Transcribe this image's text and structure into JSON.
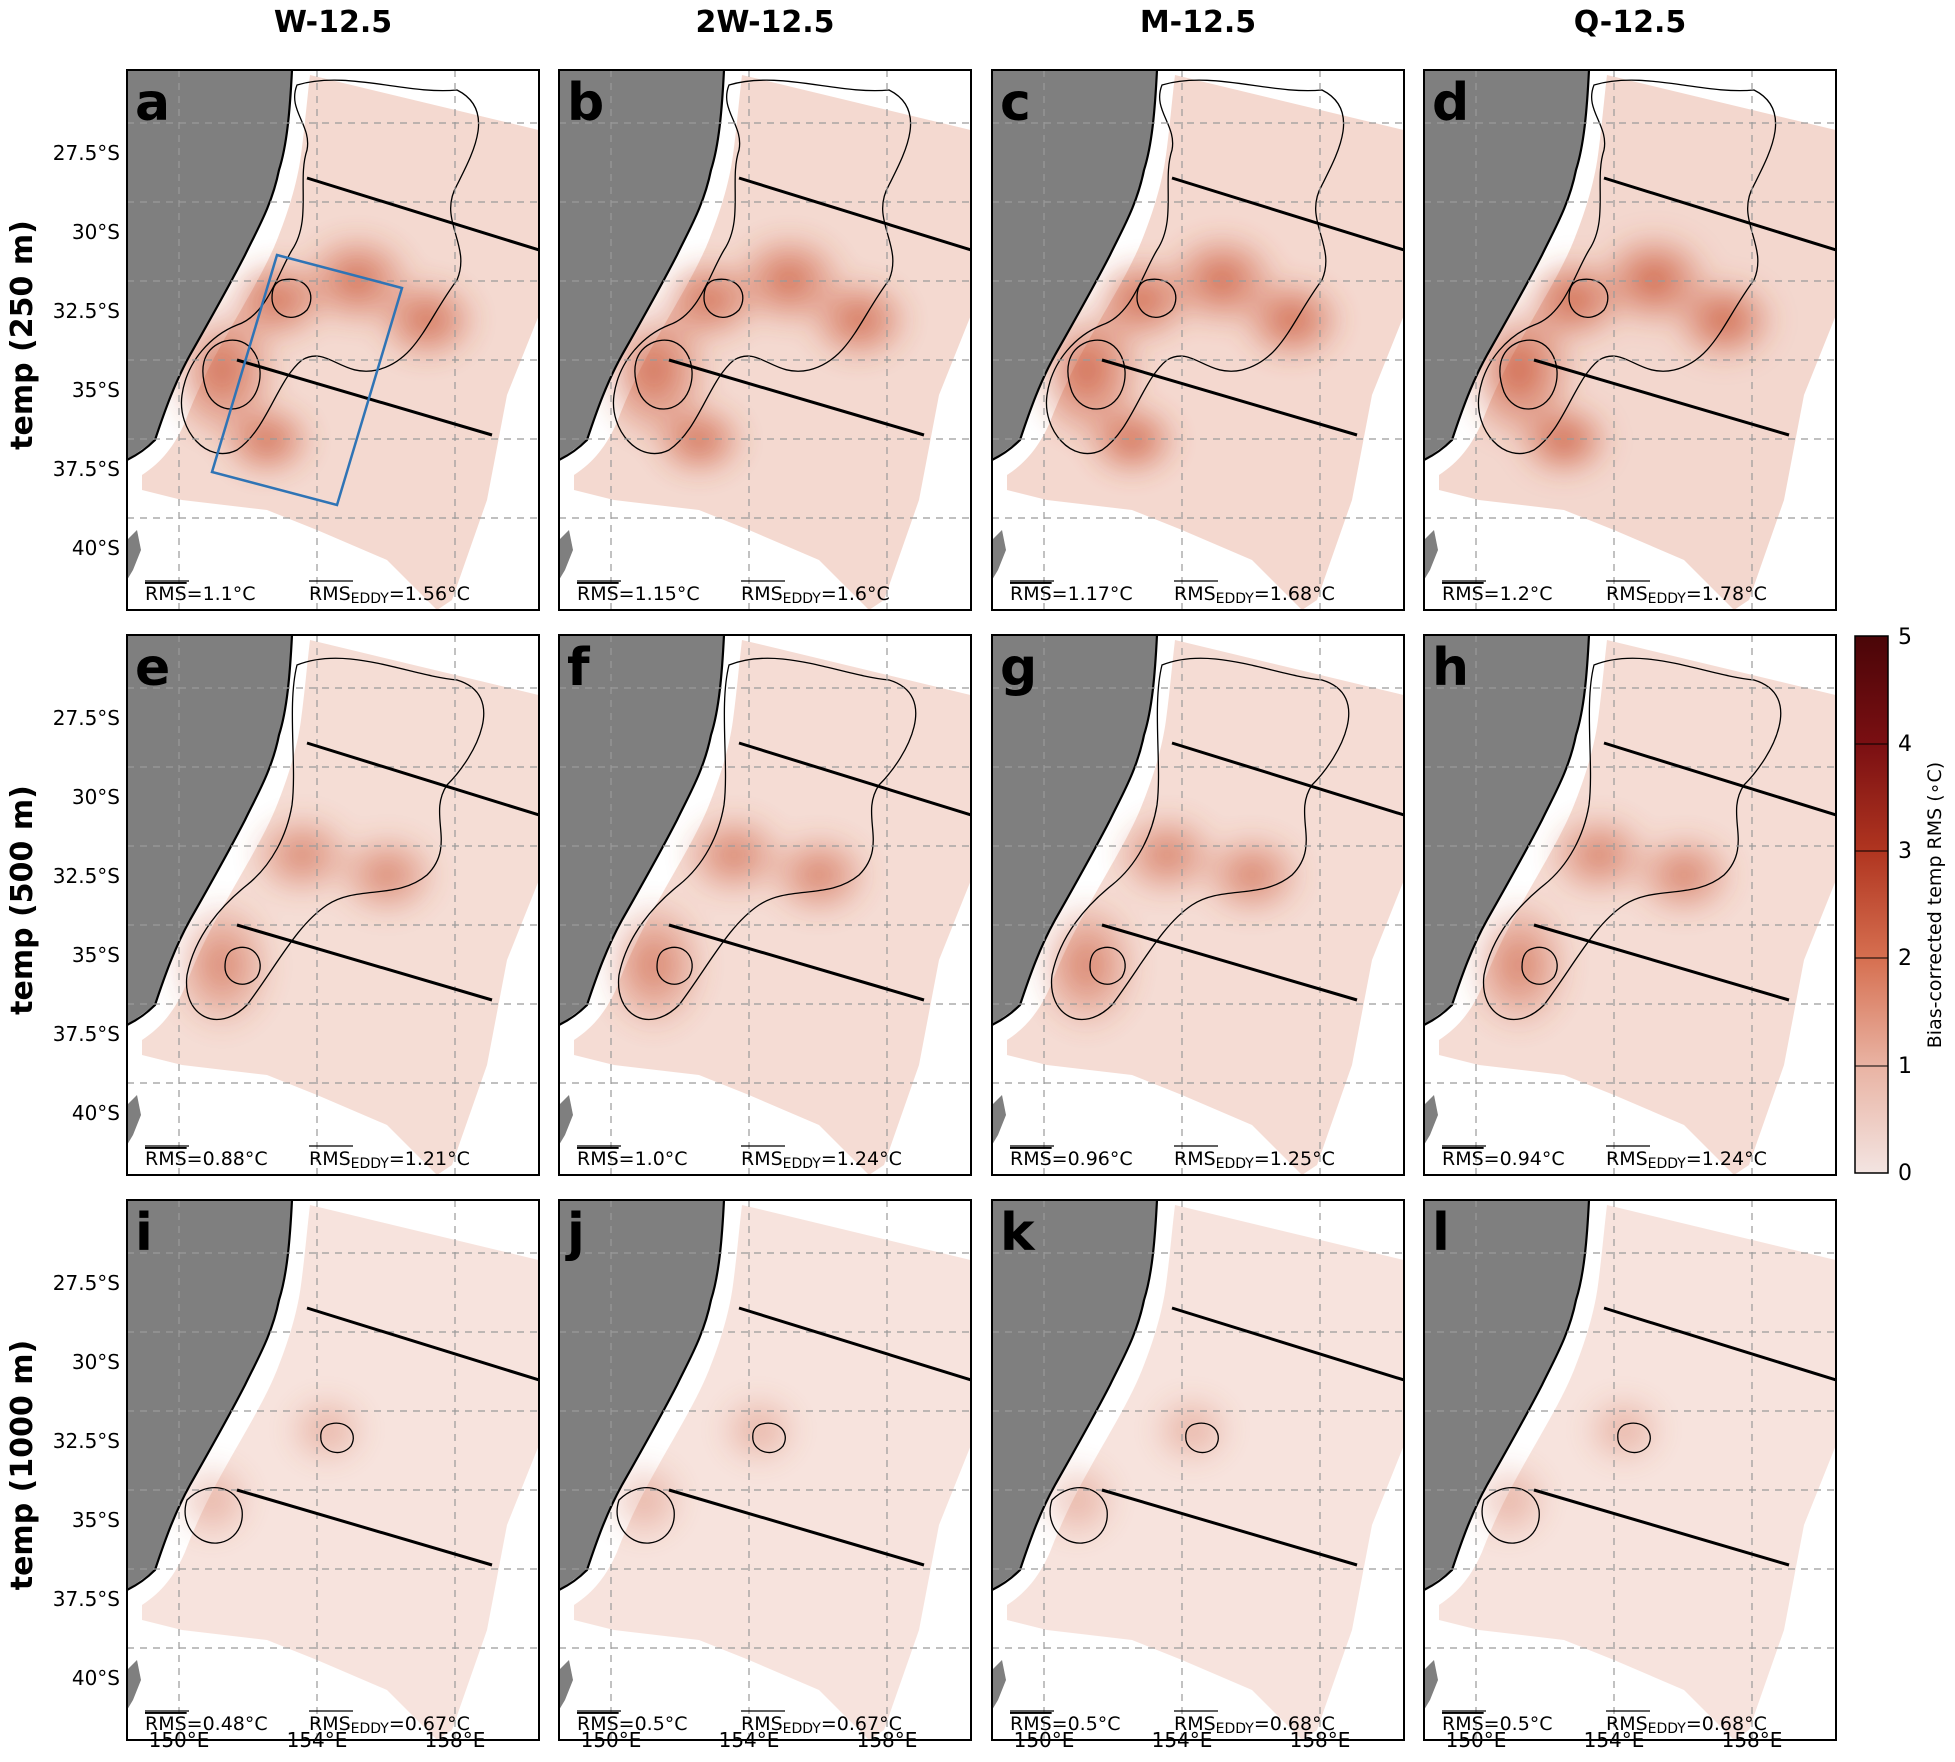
{
  "columns": [
    "W-12.5",
    "2W-12.5",
    "M-12.5",
    "Q-12.5"
  ],
  "rows": [
    "temp (250 m)",
    "temp (500 m)",
    "temp (1000 m)"
  ],
  "lat_ticks": [
    "27.5°S",
    "30°S",
    "32.5°S",
    "35°S",
    "37.5°S",
    "40°S"
  ],
  "lon_ticks": [
    "150°E",
    "154°E",
    "158°E"
  ],
  "panels": [
    {
      "letter": "a",
      "rms_label": "RMS",
      "rms_value": "=1.1°C",
      "eddy_label": "RMS",
      "eddy_sub": "EDDY",
      "eddy_value": "=1.56°C",
      "intensity": 1.15
    },
    {
      "letter": "b",
      "rms_label": "RMS",
      "rms_value": "=1.15°C",
      "eddy_label": "RMS",
      "eddy_sub": "EDDY",
      "eddy_value": "=1.6°C",
      "intensity": 1.15
    },
    {
      "letter": "c",
      "rms_label": "RMS",
      "rms_value": "=1.17°C",
      "eddy_label": "RMS",
      "eddy_sub": "EDDY",
      "eddy_value": "=1.68°C",
      "intensity": 1.2
    },
    {
      "letter": "d",
      "rms_label": "RMS",
      "rms_value": "=1.2°C",
      "eddy_label": "RMS",
      "eddy_sub": "EDDY",
      "eddy_value": "=1.78°C",
      "intensity": 1.25
    },
    {
      "letter": "e",
      "rms_label": "RMS",
      "rms_value": "=0.88°C",
      "eddy_label": "RMS",
      "eddy_sub": "EDDY",
      "eddy_value": "=1.21°C",
      "intensity": 0.9
    },
    {
      "letter": "f",
      "rms_label": "RMS",
      "rms_value": "=1.0°C",
      "eddy_label": "RMS",
      "eddy_sub": "EDDY",
      "eddy_value": "=1.24°C",
      "intensity": 0.95
    },
    {
      "letter": "g",
      "rms_label": "RMS",
      "rms_value": "=0.96°C",
      "eddy_label": "RMS",
      "eddy_sub": "EDDY",
      "eddy_value": "=1.25°C",
      "intensity": 0.95
    },
    {
      "letter": "h",
      "rms_label": "RMS",
      "rms_value": "=0.94°C",
      "eddy_label": "RMS",
      "eddy_sub": "EDDY",
      "eddy_value": "=1.24°C",
      "intensity": 0.95
    },
    {
      "letter": "i",
      "rms_label": "RMS",
      "rms_value": "=0.48°C",
      "eddy_label": "RMS",
      "eddy_sub": "EDDY",
      "eddy_value": "=0.67°C",
      "intensity": 0.5
    },
    {
      "letter": "j",
      "rms_label": "RMS",
      "rms_value": "=0.5°C",
      "eddy_label": "RMS",
      "eddy_sub": "EDDY",
      "eddy_value": "=0.67°C",
      "intensity": 0.5
    },
    {
      "letter": "k",
      "rms_label": "RMS",
      "rms_value": "=0.5°C",
      "eddy_label": "RMS",
      "eddy_sub": "EDDY",
      "eddy_value": "=0.68°C",
      "intensity": 0.5
    },
    {
      "letter": "l",
      "rms_label": "RMS",
      "rms_value": "=0.5°C",
      "eddy_label": "RMS",
      "eddy_sub": "EDDY",
      "eddy_value": "=0.68°C",
      "intensity": 0.5
    }
  ],
  "colorbar": {
    "label": "Bias-corrected temp RMS (∘C)",
    "ticks": [
      "0",
      "1",
      "2",
      "3",
      "4",
      "5"
    ],
    "min": 0,
    "max": 5,
    "colors": [
      "#f3e4e1",
      "#e9b3a3",
      "#d66f50",
      "#b03520",
      "#7a0f12",
      "#4a0508"
    ]
  },
  "colors": {
    "land": "#7f7f7f",
    "ocean_base": "#f2d3c9",
    "hotspot": "#c9502f",
    "box": "#2f74b5"
  }
}
